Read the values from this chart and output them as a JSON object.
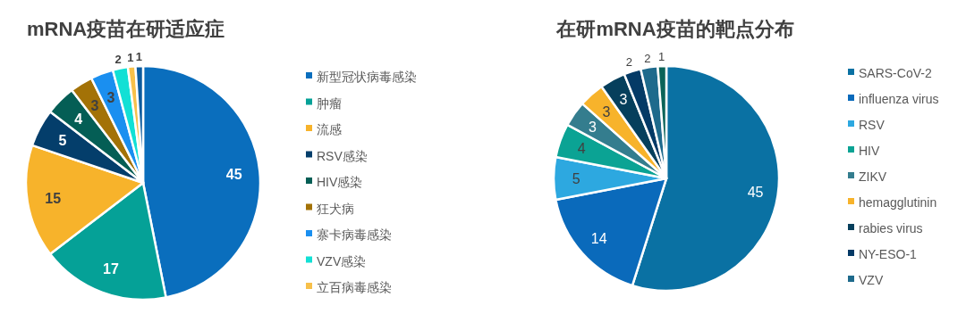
{
  "chart_data": [
    {
      "type": "pie",
      "title": "mRNA疫苗在研适应症",
      "data_labels": true,
      "legend": "right",
      "categories": [
        "新型冠状病毒感染",
        "肿瘤",
        "流感",
        "RSV感染",
        "HIV感染",
        "狂犬病",
        "寨卡病毒感染",
        "VZV感染",
        "立百病毒感染",
        null
      ],
      "values": [
        45,
        17,
        15,
        5,
        4,
        3,
        3,
        2,
        1,
        1
      ],
      "colors": [
        "#0a6ebd",
        "#05a197",
        "#f7b32b",
        "#043e6b",
        "#045e55",
        "#a37207",
        "#1a8ff0",
        "#12e0d5",
        "#f7c04a",
        "#0c5b9e"
      ]
    },
    {
      "type": "pie",
      "title": "在研mRNA疫苗的靶点分布",
      "data_labels": true,
      "legend": "right",
      "categories": [
        "SARS-CoV-2",
        "influenza virus",
        "RSV",
        "HIV",
        "ZIKV",
        "hemagglutinin",
        "rabies virus",
        "NY-ESO-1",
        "VZV",
        null
      ],
      "values": [
        45,
        14,
        5,
        4,
        3,
        3,
        3,
        2,
        2,
        1
      ],
      "colors": [
        "#0a71a3",
        "#0a6abb",
        "#2da8e0",
        "#0ba394",
        "#347d8e",
        "#f7b32b",
        "#063f5c",
        "#043a66",
        "#1e6a8c",
        "#0a6358"
      ]
    }
  ]
}
